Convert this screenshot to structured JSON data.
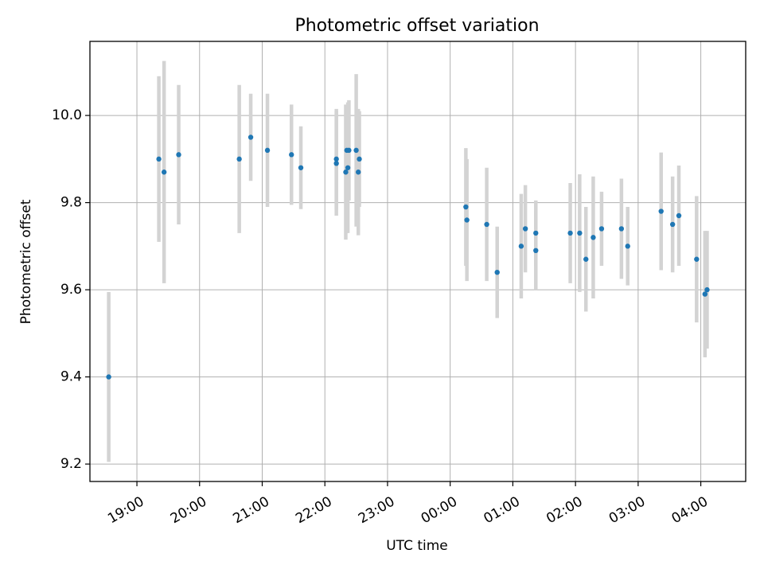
{
  "chart_data": {
    "type": "scatter",
    "title": "Photometric offset variation",
    "xlabel": "UTC time",
    "ylabel": "Photometric offset",
    "xlim": [
      "18:15",
      "04:43"
    ],
    "ylim": [
      9.16,
      10.17
    ],
    "x_ticks": [
      "19:00",
      "20:00",
      "21:00",
      "22:00",
      "23:00",
      "00:00",
      "01:00",
      "02:00",
      "03:00",
      "04:00"
    ],
    "y_ticks": [
      9.2,
      9.4,
      9.6,
      9.8,
      10.0
    ],
    "y_tick_labels": [
      "9.2",
      "9.4",
      "9.6",
      "9.8",
      "10.0"
    ],
    "grid": true,
    "point_color": "#1f77b4",
    "errorbar_color": "#d3d3d3",
    "series": [
      {
        "points": [
          {
            "x": "18:33",
            "y": 9.4,
            "err": 0.195
          },
          {
            "x": "19:21",
            "y": 9.9,
            "err": 0.19
          },
          {
            "x": "19:26",
            "y": 9.87,
            "err": 0.255
          },
          {
            "x": "19:40",
            "y": 9.91,
            "err": 0.16
          },
          {
            "x": "20:38",
            "y": 9.9,
            "err": 0.17
          },
          {
            "x": "20:49",
            "y": 9.95,
            "err": 0.1
          },
          {
            "x": "21:05",
            "y": 9.92,
            "err": 0.13
          },
          {
            "x": "21:28",
            "y": 9.91,
            "err": 0.115
          },
          {
            "x": "21:37",
            "y": 9.88,
            "err": 0.095
          },
          {
            "x": "22:11",
            "y": 9.9,
            "err": 0.115
          },
          {
            "x": "22:11",
            "y": 9.89,
            "err": 0.12
          },
          {
            "x": "22:20",
            "y": 9.87,
            "err": 0.155
          },
          {
            "x": "22:21",
            "y": 9.92,
            "err": 0.1
          },
          {
            "x": "22:22",
            "y": 9.88,
            "err": 0.15
          },
          {
            "x": "22:23",
            "y": 9.92,
            "err": 0.115
          },
          {
            "x": "22:30",
            "y": 9.92,
            "err": 0.175
          },
          {
            "x": "22:32",
            "y": 9.87,
            "err": 0.145
          },
          {
            "x": "22:33",
            "y": 9.9,
            "err": 0.11
          },
          {
            "x": "00:15",
            "y": 9.79,
            "err": 0.135
          },
          {
            "x": "00:16",
            "y": 9.76,
            "err": 0.14
          },
          {
            "x": "00:35",
            "y": 9.75,
            "err": 0.13
          },
          {
            "x": "00:45",
            "y": 9.64,
            "err": 0.105
          },
          {
            "x": "01:08",
            "y": 9.7,
            "err": 0.12
          },
          {
            "x": "01:12",
            "y": 9.74,
            "err": 0.1
          },
          {
            "x": "01:22",
            "y": 9.73,
            "err": 0.075
          },
          {
            "x": "01:22",
            "y": 9.69,
            "err": 0.09
          },
          {
            "x": "01:55",
            "y": 9.73,
            "err": 0.115
          },
          {
            "x": "02:04",
            "y": 9.73,
            "err": 0.135
          },
          {
            "x": "02:10",
            "y": 9.67,
            "err": 0.12
          },
          {
            "x": "02:17",
            "y": 9.72,
            "err": 0.14
          },
          {
            "x": "02:25",
            "y": 9.74,
            "err": 0.085
          },
          {
            "x": "02:44",
            "y": 9.74,
            "err": 0.115
          },
          {
            "x": "02:50",
            "y": 9.7,
            "err": 0.09
          },
          {
            "x": "03:22",
            "y": 9.78,
            "err": 0.135
          },
          {
            "x": "03:33",
            "y": 9.75,
            "err": 0.11
          },
          {
            "x": "03:39",
            "y": 9.77,
            "err": 0.115
          },
          {
            "x": "03:56",
            "y": 9.67,
            "err": 0.145
          },
          {
            "x": "04:04",
            "y": 9.59,
            "err": 0.145
          },
          {
            "x": "04:06",
            "y": 9.6,
            "err": 0.135
          }
        ]
      }
    ]
  }
}
